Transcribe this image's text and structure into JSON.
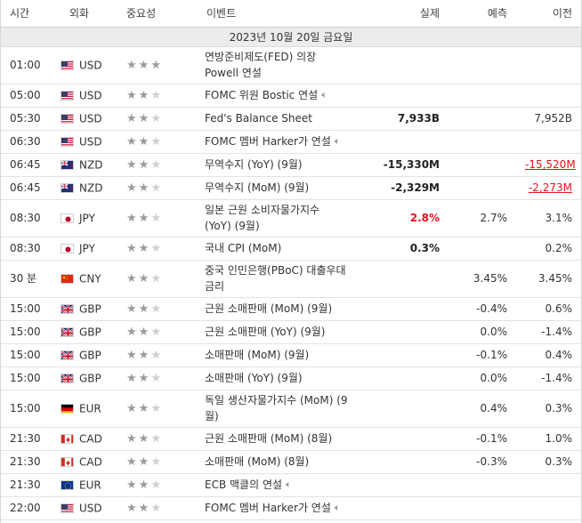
{
  "header": {
    "time": "시간",
    "currency": "외화",
    "importance": "중요성",
    "event": "이벤트",
    "actual": "실제",
    "forecast": "예측",
    "previous": "이전"
  },
  "day_label": "2023년 10월 20일 금요일",
  "colors": {
    "red": "#e0141e",
    "star_on": "#9a9a9a",
    "star_off": "#cfcfcf"
  },
  "rows": [
    {
      "time": "01:00",
      "flag": "us-flag-icon",
      "cur": "USD",
      "stars": 3,
      "event": "연방준비제도(FED) 의장 Powell 연설",
      "speaker": false,
      "actual": "",
      "actual_red": false,
      "forecast": "",
      "previous": "",
      "prev_revised": false
    },
    {
      "time": "05:00",
      "flag": "us-flag-icon",
      "cur": "USD",
      "stars": 2,
      "event": "FOMC 위원 Bostic 연설",
      "speaker": true,
      "actual": "",
      "actual_red": false,
      "forecast": "",
      "previous": "",
      "prev_revised": false
    },
    {
      "time": "05:30",
      "flag": "us-flag-icon",
      "cur": "USD",
      "stars": 2,
      "event": "Fed's Balance Sheet",
      "speaker": false,
      "actual": "7,933B",
      "actual_red": false,
      "forecast": "",
      "previous": "7,952B",
      "prev_revised": false
    },
    {
      "time": "06:30",
      "flag": "us-flag-icon",
      "cur": "USD",
      "stars": 2,
      "event": "FOMC 멤버 Harker가 연설",
      "speaker": true,
      "actual": "",
      "actual_red": false,
      "forecast": "",
      "previous": "",
      "prev_revised": false
    },
    {
      "time": "06:45",
      "flag": "nz-flag-icon",
      "cur": "NZD",
      "stars": 2,
      "event": "무역수지 (YoY) (9월)",
      "speaker": false,
      "actual": "-15,330M",
      "actual_red": false,
      "forecast": "",
      "previous": "-15,520M",
      "prev_revised": true
    },
    {
      "time": "06:45",
      "flag": "nz-flag-icon",
      "cur": "NZD",
      "stars": 2,
      "event": "무역수지 (MoM) (9월)",
      "speaker": false,
      "actual": "-2,329M",
      "actual_red": false,
      "forecast": "",
      "previous": "-2,273M",
      "prev_revised": true
    },
    {
      "time": "08:30",
      "flag": "jp-flag-icon",
      "cur": "JPY",
      "stars": 2,
      "event": "일본 근원 소비자물가지수 (YoY) (9월)",
      "speaker": false,
      "actual": "2.8%",
      "actual_red": true,
      "forecast": "2.7%",
      "previous": "3.1%",
      "prev_revised": false
    },
    {
      "time": "08:30",
      "flag": "jp-flag-icon",
      "cur": "JPY",
      "stars": 2,
      "event": "국내 CPI (MoM)",
      "speaker": false,
      "actual": "0.3%",
      "actual_red": false,
      "forecast": "",
      "previous": "0.2%",
      "prev_revised": false
    },
    {
      "time": "30 분",
      "flag": "cn-flag-icon",
      "cur": "CNY",
      "stars": 2,
      "event": "중국 인민은행(PBoC) 대출우대 금리",
      "speaker": false,
      "actual": "",
      "actual_red": false,
      "forecast": "3.45%",
      "previous": "3.45%",
      "prev_revised": false
    },
    {
      "time": "15:00",
      "flag": "gb-flag-icon",
      "cur": "GBP",
      "stars": 2,
      "event": "근원 소매판매 (MoM) (9월)",
      "speaker": false,
      "actual": "",
      "actual_red": false,
      "forecast": "-0.4%",
      "previous": "0.6%",
      "prev_revised": false
    },
    {
      "time": "15:00",
      "flag": "gb-flag-icon",
      "cur": "GBP",
      "stars": 2,
      "event": "근원 소매판매 (YoY) (9월)",
      "speaker": false,
      "actual": "",
      "actual_red": false,
      "forecast": "0.0%",
      "previous": "-1.4%",
      "prev_revised": false
    },
    {
      "time": "15:00",
      "flag": "gb-flag-icon",
      "cur": "GBP",
      "stars": 2,
      "event": "소매판매 (MoM) (9월)",
      "speaker": false,
      "actual": "",
      "actual_red": false,
      "forecast": "-0.1%",
      "previous": "0.4%",
      "prev_revised": false
    },
    {
      "time": "15:00",
      "flag": "gb-flag-icon",
      "cur": "GBP",
      "stars": 2,
      "event": "소매판매 (YoY) (9월)",
      "speaker": false,
      "actual": "",
      "actual_red": false,
      "forecast": "0.0%",
      "previous": "-1.4%",
      "prev_revised": false
    },
    {
      "time": "15:00",
      "flag": "de-flag-icon",
      "cur": "EUR",
      "stars": 2,
      "event": "독일 생산자물가지수 (MoM) (9월)",
      "speaker": false,
      "actual": "",
      "actual_red": false,
      "forecast": "0.4%",
      "previous": "0.3%",
      "prev_revised": false
    },
    {
      "time": "21:30",
      "flag": "ca-flag-icon",
      "cur": "CAD",
      "stars": 2,
      "event": "근원 소매판매 (MoM) (8월)",
      "speaker": false,
      "actual": "",
      "actual_red": false,
      "forecast": "-0.1%",
      "previous": "1.0%",
      "prev_revised": false
    },
    {
      "time": "21:30",
      "flag": "ca-flag-icon",
      "cur": "CAD",
      "stars": 2,
      "event": "소매판매 (MoM) (8월)",
      "speaker": false,
      "actual": "",
      "actual_red": false,
      "forecast": "-0.3%",
      "previous": "0.3%",
      "prev_revised": false
    },
    {
      "time": "21:30",
      "flag": "eu-flag-icon",
      "cur": "EUR",
      "stars": 2,
      "event": "ECB 맥클의 연설",
      "speaker": true,
      "actual": "",
      "actual_red": false,
      "forecast": "",
      "previous": "",
      "prev_revised": false
    },
    {
      "time": "22:00",
      "flag": "us-flag-icon",
      "cur": "USD",
      "stars": 2,
      "event": "FOMC 멤버 Harker가 연설",
      "speaker": true,
      "actual": "",
      "actual_red": false,
      "forecast": "",
      "previous": "",
      "prev_revised": false
    }
  ]
}
